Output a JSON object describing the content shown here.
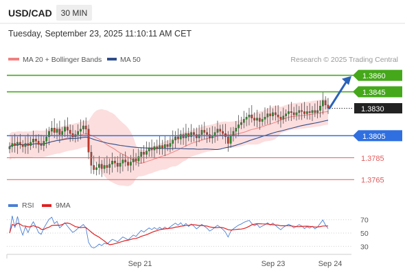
{
  "header": {
    "symbol": "USD/CAD",
    "timeframe": "30 MIN",
    "timestamp": "Tuesday, September 23, 2025 11:10:11 AM CET"
  },
  "legend": {
    "ma20": "MA 20 + Bollinger Bands",
    "ma50": "MA 50",
    "source": "Research © 2025 Trading Central",
    "ma20_color": "#f08080",
    "ma50_color": "#2e4d8a"
  },
  "chart_data": [
    {
      "type": "candlestick",
      "title": "USD/CAD 30 MIN",
      "ylim": [
        1.3752,
        1.3866
      ],
      "x_labels": [
        "Sep 21",
        "Sep 23",
        "Sep 24"
      ],
      "grid": false,
      "last_price": "1.3830",
      "levels": [
        {
          "label": "1.3860",
          "value": 1.386,
          "kind": "resistance",
          "color": "#44a81a"
        },
        {
          "label": "1.3845",
          "value": 1.3845,
          "kind": "resistance",
          "color": "#44a81a"
        },
        {
          "label": "1.3830",
          "value": 1.383,
          "kind": "last",
          "color": "#222222"
        },
        {
          "label": "1.3805",
          "value": 1.3805,
          "kind": "pivot",
          "color": "#2f6fe0"
        },
        {
          "label": "1.3785",
          "value": 1.3785,
          "kind": "support",
          "color": "#e05a5a"
        },
        {
          "label": "1.3765",
          "value": 1.3765,
          "kind": "support",
          "color": "#e05a5a"
        }
      ],
      "colors": {
        "up": "#2b8a2b",
        "down": "#c0392b",
        "band": "#fbd3d3",
        "arrow": "#2a62b8"
      },
      "close": [
        1.3795,
        1.3798,
        1.3796,
        1.3799,
        1.3797,
        1.3795,
        1.3798,
        1.3796,
        1.3799,
        1.3802,
        1.38,
        1.3797,
        1.3796,
        1.38,
        1.3804,
        1.3809,
        1.3812,
        1.3808,
        1.3811,
        1.3806,
        1.3809,
        1.3813,
        1.381,
        1.3807,
        1.3804,
        1.3806,
        1.3809,
        1.3811,
        1.3814,
        1.3811,
        1.379,
        1.3778,
        1.3774,
        1.3776,
        1.3779,
        1.3775,
        1.3778,
        1.3776,
        1.3779,
        1.3782,
        1.378,
        1.3777,
        1.378,
        1.3783,
        1.3781,
        1.3778,
        1.3781,
        1.3784,
        1.3782,
        1.3786,
        1.379,
        1.3788,
        1.3791,
        1.3794,
        1.3792,
        1.3795,
        1.3793,
        1.3796,
        1.3794,
        1.3797,
        1.3795,
        1.3798,
        1.3801,
        1.3804,
        1.3802,
        1.3806,
        1.3803,
        1.3807,
        1.3804,
        1.3808,
        1.3806,
        1.3803,
        1.3806,
        1.381,
        1.3808,
        1.3806,
        1.3803,
        1.3805,
        1.3808,
        1.3811,
        1.3809,
        1.3807,
        1.3804,
        1.3798,
        1.3805,
        1.3809,
        1.3812,
        1.3815,
        1.3817,
        1.382,
        1.3822,
        1.3824,
        1.3821,
        1.3819,
        1.3821,
        1.3818,
        1.382,
        1.3822,
        1.3825,
        1.3823,
        1.3826,
        1.3824,
        1.3822,
        1.382,
        1.3823,
        1.3825,
        1.3827,
        1.3826,
        1.3824,
        1.3826,
        1.3828,
        1.3827,
        1.3825,
        1.3827,
        1.3826,
        1.3828,
        1.3826,
        1.3828,
        1.3832,
        1.3837,
        1.3833,
        1.383
      ],
      "rsi": {
        "labels": [
          "RSI",
          "9MA"
        ],
        "ticks": [
          "70",
          "50",
          "30"
        ],
        "ylim": [
          22,
          78
        ],
        "colors": {
          "rsi": "#4a7fd4",
          "ma": "#e02020"
        }
      },
      "band_fill_id": "bandfill"
    }
  ]
}
